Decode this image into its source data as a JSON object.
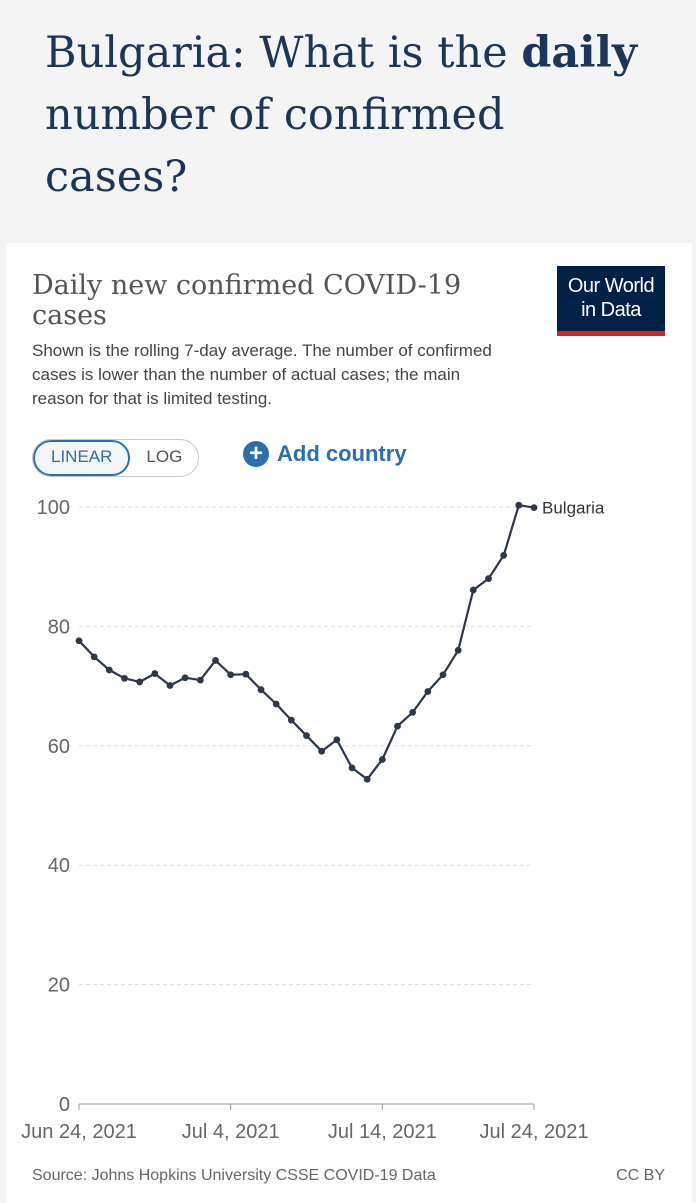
{
  "page": {
    "heading_prefix": "Bulgaria: What is the ",
    "heading_bold": "daily",
    "heading_suffix": " number of confirmed cases?"
  },
  "card": {
    "title": "Daily new confirmed COVID-19 cases",
    "subtitle": "Shown is the rolling 7-day average. The number of confirmed cases is lower than the number of actual cases; the main reason for that is limited testing.",
    "logo_line1": "Our World",
    "logo_line2": "in Data",
    "toggle_linear": "LINEAR",
    "toggle_log": "LOG",
    "add_country_icon": "+",
    "add_country_label": "Add country",
    "source": "Source: Johns Hopkins University CSSE COVID-19 Data",
    "license": "CC BY"
  },
  "colors": {
    "line": "#2d3748",
    "grid": "#dddddd",
    "axis": "#666666",
    "accent": "#2c6db0",
    "brand": "#002147",
    "brand_bar": "#ce261e"
  },
  "chart_data": {
    "type": "line",
    "title": "Daily new confirmed COVID-19 cases",
    "xlabel": "",
    "ylabel": "",
    "ylim": [
      0,
      100
    ],
    "yticks": [
      0,
      20,
      40,
      60,
      80,
      100
    ],
    "x_tick_labels": [
      "Jun 24, 2021",
      "Jul 4, 2021",
      "Jul 14, 2021",
      "Jul 24, 2021"
    ],
    "x_tick_days": [
      0,
      10,
      20,
      30
    ],
    "xlim_days": [
      0,
      30
    ],
    "grid": true,
    "series": [
      {
        "name": "Bulgaria",
        "day": [
          0,
          1,
          2,
          3,
          4,
          5,
          6,
          7,
          8,
          9,
          10,
          11,
          12,
          13,
          14,
          15,
          16,
          17,
          18,
          19,
          20,
          21,
          22,
          23,
          24,
          25,
          26,
          27,
          28,
          29,
          30
        ],
        "values": [
          77.6,
          74.9,
          72.7,
          71.3,
          70.7,
          72.1,
          70.1,
          71.4,
          71.0,
          74.3,
          71.9,
          72.0,
          69.4,
          67.0,
          64.3,
          61.7,
          59.1,
          61.0,
          56.3,
          54.4,
          57.7,
          63.3,
          65.6,
          69.1,
          71.9,
          76.0,
          86.1,
          88.0,
          91.9,
          100.3,
          99.9
        ]
      }
    ]
  }
}
